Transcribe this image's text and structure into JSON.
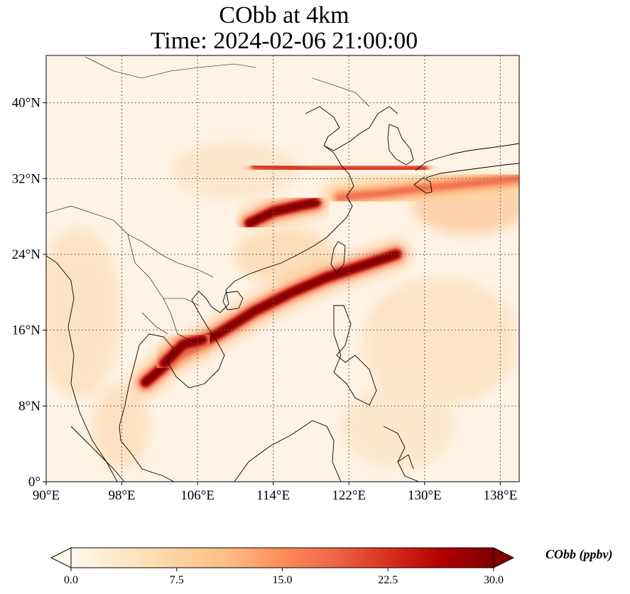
{
  "title_line1": "CObb at 4km",
  "title_line2": "Time: 2024-02-06 21:00:00",
  "map": {
    "lon_range": [
      90,
      140
    ],
    "lat_range": [
      0,
      45
    ],
    "lon_ticks": [
      {
        "value": 90,
        "label": "90°E"
      },
      {
        "value": 98,
        "label": "98°E"
      },
      {
        "value": 106,
        "label": "106°E"
      },
      {
        "value": 114,
        "label": "114°E"
      },
      {
        "value": 122,
        "label": "122°E"
      },
      {
        "value": 130,
        "label": "130°E"
      },
      {
        "value": 138,
        "label": "138°E"
      }
    ],
    "lat_ticks": [
      {
        "value": 0,
        "label": "0°"
      },
      {
        "value": 8,
        "label": "8°N"
      },
      {
        "value": 16,
        "label": "16°N"
      },
      {
        "value": 24,
        "label": "24°N"
      },
      {
        "value": 32,
        "label": "32°N"
      },
      {
        "value": 40,
        "label": "40°N"
      }
    ],
    "gridlines": true
  },
  "colorbar": {
    "label": "CObb (ppbv)",
    "min": 0.0,
    "max": 30.0,
    "extend": "both",
    "colormap": "OrRd",
    "ticks": [
      "0.0",
      "7.5",
      "15.0",
      "22.5",
      "30.0"
    ],
    "colors": [
      "#fff7ec",
      "#fee8c8",
      "#fdd49e",
      "#fdbb84",
      "#fc8d59",
      "#ef6548",
      "#d7301f",
      "#b30000",
      "#7f0000"
    ]
  },
  "plumes": [
    {
      "name": "main-southwest-plume",
      "lonlat": [
        [
          100.5,
          10.5
        ],
        [
          104,
          13.5
        ],
        [
          108,
          15.5
        ],
        [
          112,
          18
        ],
        [
          116,
          20
        ],
        [
          119.5,
          21.5
        ],
        [
          124,
          23
        ],
        [
          127,
          24
        ]
      ],
      "level": "max"
    },
    {
      "name": "central-china-plume",
      "lonlat": [
        [
          111.5,
          27.3
        ],
        [
          114,
          28.5
        ],
        [
          117,
          29.2
        ],
        [
          118.5,
          29.5
        ]
      ],
      "level": "max"
    },
    {
      "name": "northern-band",
      "lonlat": [
        [
          112,
          33.3
        ],
        [
          118,
          33
        ],
        [
          124,
          33
        ],
        [
          130,
          33
        ]
      ],
      "level": "high"
    },
    {
      "name": "east-sea-band",
      "lonlat": [
        [
          121,
          30
        ],
        [
          126,
          30.5
        ],
        [
          130,
          31
        ],
        [
          135,
          31.5
        ],
        [
          140,
          32
        ]
      ],
      "level": "mid"
    },
    {
      "name": "laos-plume",
      "lonlat": [
        [
          102.5,
          12.5
        ],
        [
          104.5,
          14.5
        ],
        [
          106.5,
          15
        ]
      ],
      "level": "max"
    }
  ]
}
